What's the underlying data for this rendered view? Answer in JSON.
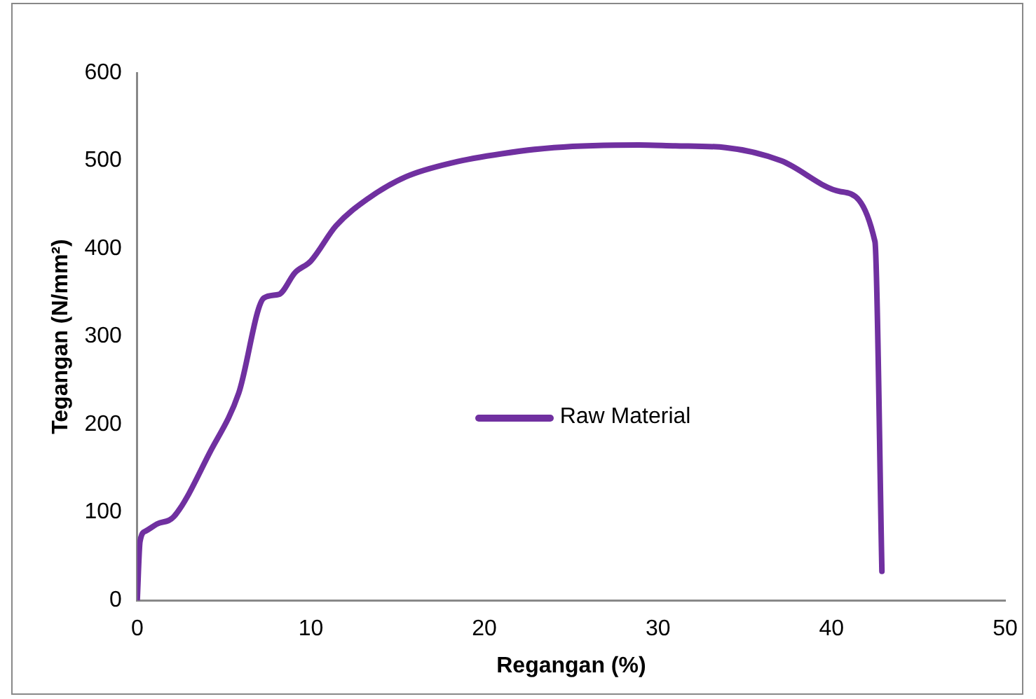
{
  "chart_data": {
    "type": "line",
    "xlabel": "Regangan (%)",
    "ylabel": "Tegangan (N/mm²)",
    "xlim": [
      0,
      50
    ],
    "xticks": [
      0,
      10,
      20,
      30,
      40,
      50
    ],
    "ylim": [
      0,
      600
    ],
    "yticks": [
      0,
      100,
      200,
      300,
      400,
      500,
      600
    ],
    "grid": false,
    "legend": "center",
    "marker": "none",
    "line_style": "solid",
    "series": [
      {
        "name": "Raw Material",
        "color": "#7030a0",
        "x": [
          0,
          0.16,
          0.5,
          1.15,
          2.1,
          4.2,
          5.85,
          7.3,
          8.15,
          9.1,
          10,
          11.45,
          13.3,
          15.5,
          18.2,
          21,
          24,
          28.9,
          31,
          33.9,
          37.1,
          40.5,
          42.5,
          42.9
        ],
        "values": [
          0,
          67,
          79,
          87,
          95,
          169,
          236,
          344,
          348,
          373,
          386,
          426,
          457,
          482,
          498,
          508,
          515,
          518,
          517,
          515,
          500,
          465,
          408,
          33
        ]
      }
    ]
  }
}
